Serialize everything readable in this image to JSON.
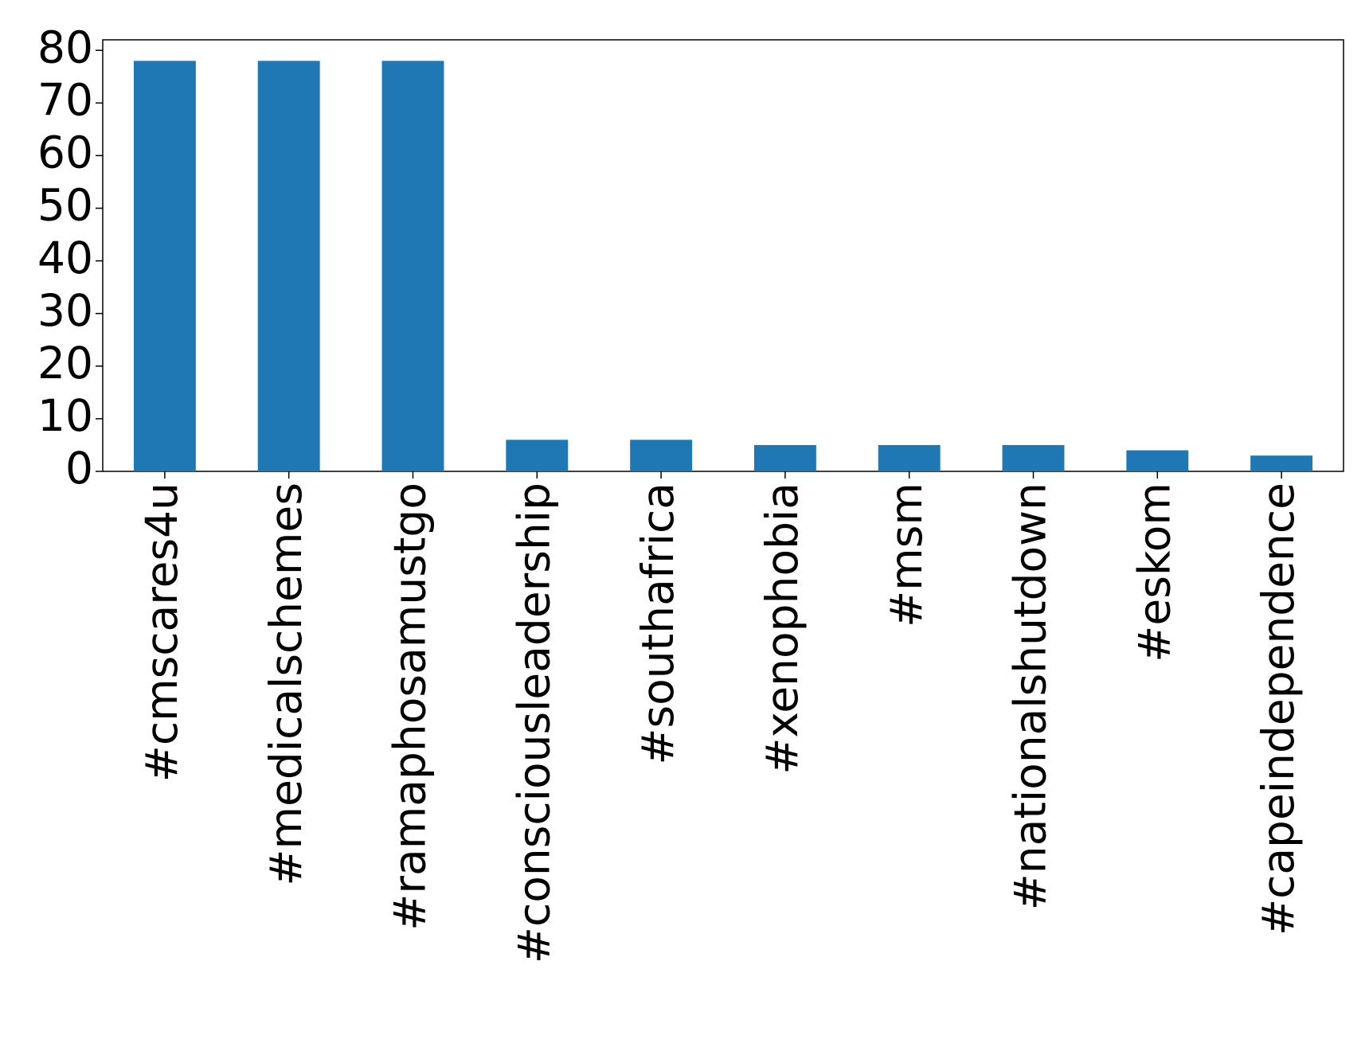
{
  "chart_data": {
    "type": "bar",
    "categories": [
      "#cmscares4u",
      "#medicalschemes",
      "#ramaphosamustgo",
      "#consciousleadership",
      "#southafrica",
      "#xenophobia",
      "#msm",
      "#nationalshutdown",
      "#eskom",
      "#capeindependence"
    ],
    "values": [
      78,
      78,
      78,
      6,
      6,
      5,
      5,
      5,
      4,
      3
    ],
    "color": "#1f77b4",
    "ylim": [
      0,
      82
    ],
    "yticks": [
      0,
      10,
      20,
      30,
      40,
      50,
      60,
      70,
      80
    ],
    "grid": false
  }
}
